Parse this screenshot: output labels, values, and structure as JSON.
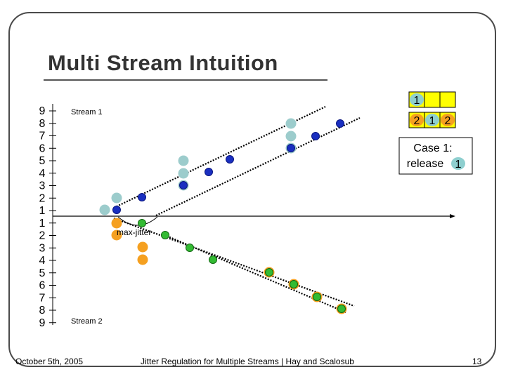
{
  "slide": {
    "title": "Multi Stream Intuition",
    "footer_left": "October 5th, 2005",
    "footer_center": "Jitter Regulation for Multiple Streams | Hay and Scalosub",
    "footer_right": "13"
  },
  "axis": {
    "upper_ticks": [
      "9",
      "8",
      "7",
      "6",
      "5",
      "4",
      "3",
      "2",
      "1"
    ],
    "lower_ticks": [
      "1",
      "2",
      "3",
      "4",
      "5",
      "6",
      "7",
      "8",
      "9"
    ]
  },
  "labels": {
    "stream1": "Stream 1",
    "stream2": "Stream 2",
    "max_jitter": "max-jitter"
  },
  "legend": {
    "row1": [
      "1",
      "",
      ""
    ],
    "row2": [
      "2",
      "1",
      "2"
    ],
    "case_line1": "Case 1:",
    "case_line2": "release",
    "case_badge": "1"
  },
  "colors": {
    "stream1_dot": "#1a2fc0",
    "stream1_buffer": "#9ccccc",
    "stream2_dot": "#33bb33",
    "stream2_buffer": "#f5a020",
    "badge_teal": "#8ecfcf",
    "badge_orange": "#f5a020",
    "legend_fill": "#ffff00"
  }
}
